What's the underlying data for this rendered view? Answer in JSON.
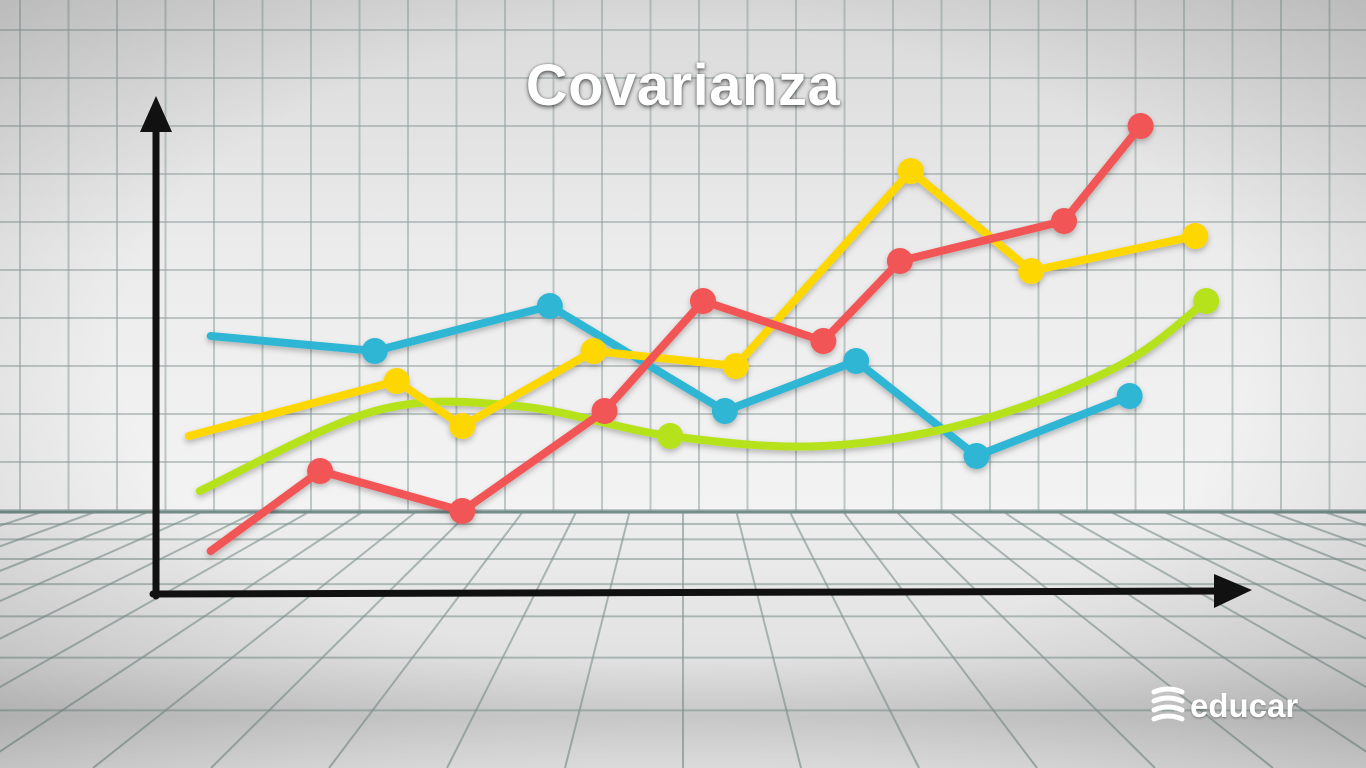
{
  "title": "Covarianza",
  "brand": {
    "name": "educar",
    "logo_icon": "educar-logo-icon"
  },
  "colors": {
    "red": "#f25454",
    "yellow": "#ffd700",
    "cyan": "#2eb6d4",
    "green": "#b6e21e",
    "axis": "#111111"
  },
  "chart_data": {
    "type": "line",
    "title": "Covarianza",
    "xlabel": "",
    "ylabel": "",
    "xlim": [
      0,
      100
    ],
    "ylim": [
      0,
      100
    ],
    "grid": true,
    "legend": "none",
    "series": [
      {
        "name": "red",
        "color": "#f25454",
        "smooth": false,
        "endMarkers": [
          false,
          true
        ],
        "points": [
          [
            5,
            9
          ],
          [
            15,
            25
          ],
          [
            28,
            17
          ],
          [
            41,
            37
          ],
          [
            50,
            59
          ],
          [
            61,
            51
          ],
          [
            68,
            67
          ],
          [
            83,
            75
          ],
          [
            90,
            94
          ]
        ]
      },
      {
        "name": "yellow",
        "color": "#ffd700",
        "smooth": false,
        "endMarkers": [
          false,
          true
        ],
        "points": [
          [
            3,
            32
          ],
          [
            22,
            43
          ],
          [
            28,
            34
          ],
          [
            40,
            49
          ],
          [
            53,
            46
          ],
          [
            69,
            85
          ],
          [
            80,
            65
          ],
          [
            95,
            72
          ]
        ]
      },
      {
        "name": "cyan",
        "color": "#2eb6d4",
        "smooth": false,
        "endMarkers": [
          false,
          true
        ],
        "points": [
          [
            5,
            52
          ],
          [
            20,
            49
          ],
          [
            36,
            58
          ],
          [
            52,
            37
          ],
          [
            64,
            47
          ],
          [
            75,
            28
          ],
          [
            89,
            40
          ]
        ]
      },
      {
        "name": "green",
        "color": "#b6e21e",
        "smooth": true,
        "endMarkers": [
          false,
          true
        ],
        "points": [
          [
            4,
            21
          ],
          [
            20,
            37
          ],
          [
            33,
            38
          ],
          [
            47,
            32
          ],
          [
            61,
            30
          ],
          [
            75,
            35
          ],
          [
            88,
            46
          ],
          [
            96,
            59
          ]
        ]
      }
    ]
  }
}
